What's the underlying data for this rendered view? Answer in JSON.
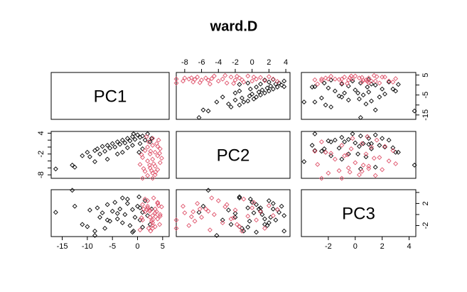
{
  "chart_data": {
    "type": "scatter_matrix",
    "title": "ward.D",
    "variables": [
      {
        "label": "PC1",
        "lim": [
          -17.2,
          6.3
        ],
        "xticks": [
          -15,
          -10,
          -5,
          0,
          5
        ],
        "yticks": [
          5,
          -5,
          -15
        ],
        "y_minor_ticks": [
          0,
          -10
        ]
      },
      {
        "label": "PC2",
        "lim": [
          -9.0,
          4.5
        ],
        "xticks": [
          -8,
          -6,
          -4,
          -2,
          0,
          2,
          4
        ],
        "yticks": [
          4,
          -2,
          -8
        ],
        "y_minor_ticks": [
          2,
          0,
          -4,
          -6
        ]
      },
      {
        "label": "PC3",
        "lim": [
          -4.0,
          4.5
        ],
        "xticks": [
          -2,
          0,
          2,
          4
        ],
        "yticks": [
          2,
          -2
        ],
        "y_minor_ticks": [
          4,
          0
        ]
      }
    ],
    "series": [
      {
        "color": "#000000",
        "values": [
          [
            -16.3,
            -13.0,
            -12.5,
            -11.0,
            -10.0,
            -9.5,
            -8.5,
            -8.0,
            -7.5,
            -7.0,
            -6.5,
            -6.0,
            -5.5,
            -5.0,
            -4.5,
            -4.0,
            -3.5,
            -3.0,
            -2.5,
            -2.0,
            -1.5,
            -1.0,
            -0.5,
            0.0,
            0.5,
            1.0,
            1.5,
            2.0,
            2.5,
            -3.0,
            -1.0,
            0.5,
            1.0,
            -2.0,
            -6.0,
            -4.0,
            2.8,
            -0.8,
            0.3,
            -8.5
          ],
          [
            -6.3,
            -5.2,
            -5.8,
            -2.5,
            -1.5,
            -2.8,
            -1.0,
            -0.5,
            -2.0,
            0.2,
            -1.2,
            0.5,
            -0.3,
            1.0,
            0.0,
            1.5,
            0.8,
            2.0,
            1.2,
            2.5,
            1.8,
            3.0,
            2.2,
            3.5,
            2.8,
            3.2,
            2.0,
            3.8,
            1.5,
            -1.5,
            0.5,
            1.0,
            -0.5,
            -0.2,
            -3.5,
            -2.0,
            2.5,
            3.8,
            -1.5,
            -4.2
          ],
          [
            0.4,
            4.4,
            1.5,
            -1.8,
            -2.2,
            0.8,
            -3.0,
            1.2,
            -0.5,
            0.3,
            -2.5,
            1.8,
            -1.2,
            0.6,
            2.2,
            -0.8,
            1.0,
            -1.5,
            0.0,
            2.0,
            -2.0,
            0.9,
            -0.5,
            1.5,
            -1.0,
            0.4,
            2.5,
            -0.2,
            -1.8,
            3.0,
            -3.2,
            1.2,
            -2.3,
            2.8,
            -1.0,
            0.2,
            1.0,
            -3.0,
            3.2,
            -3.8
          ]
        ]
      },
      {
        "color": "#DF536B",
        "values": [
          [
            1.0,
            2.0,
            3.0,
            1.5,
            4.0,
            2.5,
            3.5,
            0.5,
            4.5,
            2.0,
            3.0,
            1.0,
            4.0,
            2.5,
            3.5,
            1.5,
            4.5,
            2.0,
            3.0,
            3.8,
            2.2,
            4.2,
            3.0,
            1.8,
            3.5,
            2.8,
            4.8,
            0.8,
            3.2,
            2.6,
            4.0,
            1.2,
            3.6,
            2.4,
            4.4,
            3.0
          ],
          [
            -9.0,
            -8.2,
            -7.5,
            -7.0,
            -6.5,
            -6.0,
            -5.5,
            -5.0,
            -4.5,
            -4.0,
            -3.5,
            -3.0,
            -2.5,
            -2.0,
            -1.5,
            -1.0,
            -0.5,
            0.0,
            0.5,
            1.0,
            1.5,
            2.0,
            2.5,
            3.0,
            -8.0,
            -6.8,
            -3.2,
            -2.2,
            -4.8,
            -1.2,
            0.2,
            -6.2,
            -7.2,
            -5.2,
            -1.8,
            -9.0
          ],
          [
            -1.0,
            1.5,
            -2.0,
            0.5,
            2.0,
            -0.5,
            1.0,
            -2.8,
            0.0,
            2.5,
            -1.5,
            1.8,
            -0.8,
            0.8,
            -2.2,
            2.8,
            -0.3,
            1.2,
            -1.0,
            0.5,
            -2.5,
            1.6,
            -0.2,
            0.9,
            0.3,
            -1.2,
            1.4,
            -0.6,
            3.0,
            -3.0,
            2.2,
            1.0,
            -0.4,
            0.6,
            -1.8,
            -2.5
          ]
        ]
      }
    ]
  }
}
